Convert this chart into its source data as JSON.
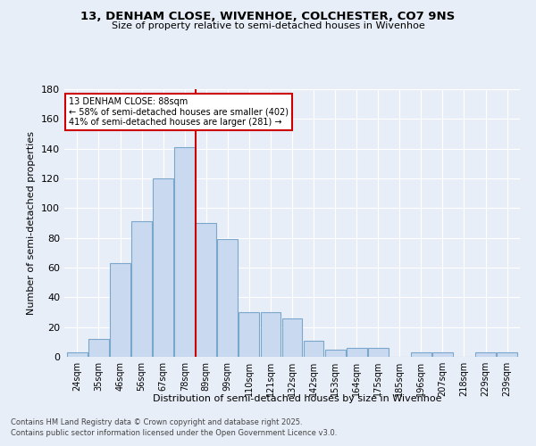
{
  "title1": "13, DENHAM CLOSE, WIVENHOE, COLCHESTER, CO7 9NS",
  "title2": "Size of property relative to semi-detached houses in Wivenhoe",
  "xlabel": "Distribution of semi-detached houses by size in Wivenhoe",
  "ylabel": "Number of semi-detached properties",
  "categories": [
    "24sqm",
    "35sqm",
    "46sqm",
    "56sqm",
    "67sqm",
    "78sqm",
    "89sqm",
    "99sqm",
    "110sqm",
    "121sqm",
    "132sqm",
    "142sqm",
    "153sqm",
    "164sqm",
    "175sqm",
    "185sqm",
    "196sqm",
    "207sqm",
    "218sqm",
    "229sqm",
    "239sqm"
  ],
  "values": [
    3,
    12,
    63,
    91,
    120,
    141,
    90,
    79,
    30,
    30,
    26,
    11,
    5,
    6,
    6,
    0,
    3,
    3,
    0,
    3,
    3
  ],
  "bar_color": "#c9daf0",
  "bar_edgecolor": "#7aa6cc",
  "property_label": "13 DENHAM CLOSE: 88sqm",
  "pct_smaller": 58,
  "pct_smaller_count": 402,
  "pct_larger": 41,
  "pct_larger_count": 281,
  "vline_x_index": 6,
  "vline_color": "#cc0000",
  "annotation_box_color": "#cc0000",
  "bg_color": "#e8eef8",
  "plot_bg_color": "#e8eef8",
  "grid_color": "#ffffff",
  "ylim": [
    0,
    180
  ],
  "yticks": [
    0,
    20,
    40,
    60,
    80,
    100,
    120,
    140,
    160,
    180
  ],
  "footer1": "Contains HM Land Registry data © Crown copyright and database right 2025.",
  "footer2": "Contains public sector information licensed under the Open Government Licence v3.0."
}
